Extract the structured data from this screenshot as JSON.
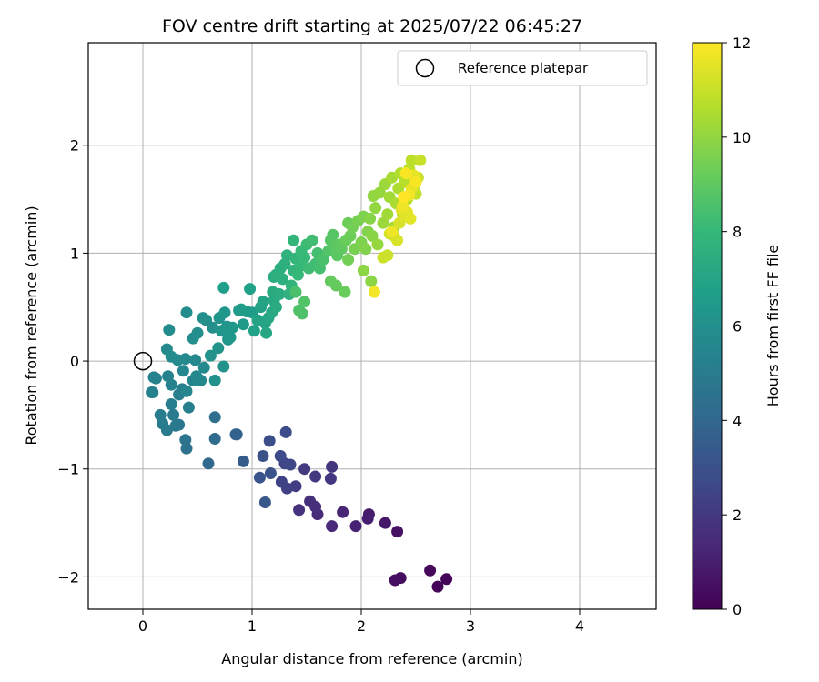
{
  "chart_data": {
    "type": "scatter",
    "title": "FOV centre drift starting at 2025/07/22 06:45:27",
    "xlabel": "Angular distance from reference (arcmin)",
    "ylabel": "Rotation from reference (arcmin)",
    "xlim": [
      -0.5,
      4.7
    ],
    "ylim": [
      -2.3,
      2.95
    ],
    "xticks": [
      0,
      1,
      2,
      3,
      4
    ],
    "yticks": [
      -2,
      -1,
      0,
      1,
      2
    ],
    "xtick_labels": [
      "0",
      "1",
      "2",
      "3",
      "4"
    ],
    "ytick_labels": [
      "−2",
      "−1",
      "0",
      "1",
      "2"
    ],
    "grid": true,
    "legend": {
      "placement": "top-right",
      "entries": [
        {
          "label": "Reference platepar",
          "marker": "hollow-circle",
          "color": "#000000"
        }
      ]
    },
    "reference": {
      "x": 0,
      "y": 0
    },
    "colorbar": {
      "label": "Hours from first FF file",
      "range": [
        0,
        12
      ],
      "ticks": [
        0,
        2,
        4,
        6,
        8,
        10,
        12
      ],
      "tick_labels": [
        "0",
        "2",
        "4",
        "6",
        "8",
        "10",
        "12"
      ],
      "colormap": "viridis",
      "stops": [
        "#440154",
        "#482878",
        "#3e4989",
        "#31688e",
        "#26828e",
        "#1f9e89",
        "#35b779",
        "#6ece58",
        "#b5de2b",
        "#fde725"
      ]
    },
    "points": [
      {
        "x": 2.78,
        "y": -2.02,
        "h": 0.1
      },
      {
        "x": 2.7,
        "y": -2.09,
        "h": 0.15
      },
      {
        "x": 2.63,
        "y": -1.94,
        "h": 0.25
      },
      {
        "x": 2.36,
        "y": -2.01,
        "h": 0.4
      },
      {
        "x": 2.31,
        "y": -2.03,
        "h": 0.45
      },
      {
        "x": 2.33,
        "y": -1.58,
        "h": 0.6
      },
      {
        "x": 2.22,
        "y": -1.5,
        "h": 0.8
      },
      {
        "x": 2.07,
        "y": -1.42,
        "h": 0.9
      },
      {
        "x": 2.06,
        "y": -1.46,
        "h": 1.0
      },
      {
        "x": 1.95,
        "y": -1.53,
        "h": 1.1
      },
      {
        "x": 1.83,
        "y": -1.4,
        "h": 1.3
      },
      {
        "x": 1.73,
        "y": -1.53,
        "h": 1.4
      },
      {
        "x": 1.6,
        "y": -1.42,
        "h": 1.5
      },
      {
        "x": 1.53,
        "y": -1.3,
        "h": 1.6
      },
      {
        "x": 1.58,
        "y": -1.35,
        "h": 1.6
      },
      {
        "x": 1.43,
        "y": -1.38,
        "h": 1.7
      },
      {
        "x": 1.73,
        "y": -0.98,
        "h": 1.8
      },
      {
        "x": 1.72,
        "y": -1.09,
        "h": 1.9
      },
      {
        "x": 1.58,
        "y": -1.07,
        "h": 2.0
      },
      {
        "x": 1.48,
        "y": -1.0,
        "h": 2.1
      },
      {
        "x": 1.4,
        "y": -1.16,
        "h": 2.2
      },
      {
        "x": 1.32,
        "y": -1.18,
        "h": 2.3
      },
      {
        "x": 1.27,
        "y": -1.12,
        "h": 2.4
      },
      {
        "x": 1.3,
        "y": -0.95,
        "h": 2.5
      },
      {
        "x": 1.35,
        "y": -0.96,
        "h": 2.6
      },
      {
        "x": 1.26,
        "y": -0.88,
        "h": 2.7
      },
      {
        "x": 1.31,
        "y": -0.66,
        "h": 2.8
      },
      {
        "x": 1.16,
        "y": -0.74,
        "h": 2.9
      },
      {
        "x": 1.1,
        "y": -0.88,
        "h": 3.0
      },
      {
        "x": 1.17,
        "y": -1.04,
        "h": 3.1
      },
      {
        "x": 1.07,
        "y": -1.08,
        "h": 3.2
      },
      {
        "x": 1.12,
        "y": -1.31,
        "h": 3.3
      },
      {
        "x": 0.92,
        "y": -0.93,
        "h": 3.5
      },
      {
        "x": 0.85,
        "y": -0.68,
        "h": 3.7
      },
      {
        "x": 0.86,
        "y": -0.68,
        "h": 3.8
      },
      {
        "x": 0.6,
        "y": -0.95,
        "h": 4.0
      },
      {
        "x": 0.66,
        "y": -0.72,
        "h": 4.2
      },
      {
        "x": 0.66,
        "y": -0.52,
        "h": 4.4
      },
      {
        "x": 0.4,
        "y": -0.81,
        "h": 4.5
      },
      {
        "x": 0.39,
        "y": -0.73,
        "h": 4.6
      },
      {
        "x": 0.33,
        "y": -0.59,
        "h": 4.7
      },
      {
        "x": 0.3,
        "y": -0.6,
        "h": 4.8
      },
      {
        "x": 0.28,
        "y": -0.5,
        "h": 4.9
      },
      {
        "x": 0.22,
        "y": -0.64,
        "h": 4.9
      },
      {
        "x": 0.18,
        "y": -0.58,
        "h": 5.0
      },
      {
        "x": 0.16,
        "y": -0.5,
        "h": 5.0
      },
      {
        "x": 0.26,
        "y": -0.4,
        "h": 5.1
      },
      {
        "x": 0.33,
        "y": -0.31,
        "h": 5.1
      },
      {
        "x": 0.36,
        "y": -0.26,
        "h": 5.2
      },
      {
        "x": 0.42,
        "y": -0.43,
        "h": 5.2
      },
      {
        "x": 0.26,
        "y": -0.22,
        "h": 5.3
      },
      {
        "x": 0.09,
        "y": -0.29,
        "h": 5.3
      },
      {
        "x": 0.08,
        "y": -0.29,
        "h": 5.3
      },
      {
        "x": 0.1,
        "y": -0.15,
        "h": 5.4
      },
      {
        "x": 0.12,
        "y": -0.16,
        "h": 5.4
      },
      {
        "x": 0.23,
        "y": -0.14,
        "h": 5.4
      },
      {
        "x": 0.37,
        "y": -0.09,
        "h": 5.5
      },
      {
        "x": 0.4,
        "y": -0.28,
        "h": 5.5
      },
      {
        "x": 0.46,
        "y": -0.18,
        "h": 5.5
      },
      {
        "x": 0.49,
        "y": -0.14,
        "h": 5.6
      },
      {
        "x": 0.53,
        "y": -0.18,
        "h": 5.6
      },
      {
        "x": 0.48,
        "y": 0.01,
        "h": 5.6
      },
      {
        "x": 0.56,
        "y": -0.06,
        "h": 5.7
      },
      {
        "x": 0.32,
        "y": 0.01,
        "h": 5.7
      },
      {
        "x": 0.39,
        "y": 0.02,
        "h": 5.7
      },
      {
        "x": 0.22,
        "y": 0.11,
        "h": 5.7
      },
      {
        "x": 0.26,
        "y": 0.04,
        "h": 5.8
      },
      {
        "x": 0.24,
        "y": 0.29,
        "h": 5.8
      },
      {
        "x": 0.4,
        "y": 0.45,
        "h": 5.8
      },
      {
        "x": 0.46,
        "y": 0.21,
        "h": 5.9
      },
      {
        "x": 0.5,
        "y": 0.26,
        "h": 5.9
      },
      {
        "x": 0.55,
        "y": 0.4,
        "h": 6.0
      },
      {
        "x": 0.58,
        "y": 0.38,
        "h": 6.0
      },
      {
        "x": 0.64,
        "y": 0.31,
        "h": 6.0
      },
      {
        "x": 0.66,
        "y": -0.18,
        "h": 6.0
      },
      {
        "x": 0.62,
        "y": 0.05,
        "h": 6.1
      },
      {
        "x": 0.69,
        "y": 0.12,
        "h": 6.1
      },
      {
        "x": 0.74,
        "y": -0.05,
        "h": 6.1
      },
      {
        "x": 0.77,
        "y": 0.32,
        "h": 6.2
      },
      {
        "x": 0.78,
        "y": 0.2,
        "h": 6.2
      },
      {
        "x": 0.7,
        "y": 0.4,
        "h": 6.2
      },
      {
        "x": 0.75,
        "y": 0.45,
        "h": 6.3
      },
      {
        "x": 0.72,
        "y": 0.28,
        "h": 6.3
      },
      {
        "x": 0.8,
        "y": 0.22,
        "h": 6.3
      },
      {
        "x": 0.82,
        "y": 0.31,
        "h": 6.4
      },
      {
        "x": 0.92,
        "y": 0.34,
        "h": 6.4
      },
      {
        "x": 0.9,
        "y": 0.48,
        "h": 6.5
      },
      {
        "x": 0.88,
        "y": 0.47,
        "h": 6.5
      },
      {
        "x": 0.95,
        "y": 0.46,
        "h": 6.6
      },
      {
        "x": 1.0,
        "y": 0.45,
        "h": 6.6
      },
      {
        "x": 0.74,
        "y": 0.68,
        "h": 6.7
      },
      {
        "x": 0.98,
        "y": 0.67,
        "h": 6.8
      },
      {
        "x": 1.02,
        "y": 0.28,
        "h": 6.8
      },
      {
        "x": 1.05,
        "y": 0.38,
        "h": 6.9
      },
      {
        "x": 1.08,
        "y": 0.5,
        "h": 6.9
      },
      {
        "x": 1.1,
        "y": 0.55,
        "h": 7.0
      },
      {
        "x": 1.12,
        "y": 0.35,
        "h": 7.0
      },
      {
        "x": 1.13,
        "y": 0.26,
        "h": 7.1
      },
      {
        "x": 1.15,
        "y": 0.4,
        "h": 7.1
      },
      {
        "x": 1.18,
        "y": 0.45,
        "h": 7.2
      },
      {
        "x": 1.2,
        "y": 0.56,
        "h": 7.2
      },
      {
        "x": 1.19,
        "y": 0.64,
        "h": 7.3
      },
      {
        "x": 1.22,
        "y": 0.5,
        "h": 7.3
      },
      {
        "x": 1.25,
        "y": 0.62,
        "h": 7.4
      },
      {
        "x": 1.2,
        "y": 0.78,
        "h": 7.4
      },
      {
        "x": 1.22,
        "y": 0.8,
        "h": 7.5
      },
      {
        "x": 1.26,
        "y": 0.86,
        "h": 7.5
      },
      {
        "x": 1.28,
        "y": 0.76,
        "h": 7.6
      },
      {
        "x": 1.3,
        "y": 0.9,
        "h": 7.6
      },
      {
        "x": 1.32,
        "y": 0.98,
        "h": 7.7
      },
      {
        "x": 1.34,
        "y": 0.62,
        "h": 7.7
      },
      {
        "x": 1.36,
        "y": 0.7,
        "h": 7.8
      },
      {
        "x": 1.38,
        "y": 0.84,
        "h": 7.8
      },
      {
        "x": 1.4,
        "y": 0.95,
        "h": 7.9
      },
      {
        "x": 1.38,
        "y": 1.12,
        "h": 7.9
      },
      {
        "x": 1.42,
        "y": 0.8,
        "h": 8.0
      },
      {
        "x": 1.44,
        "y": 0.88,
        "h": 8.0
      },
      {
        "x": 1.45,
        "y": 1.02,
        "h": 8.1
      },
      {
        "x": 1.48,
        "y": 0.96,
        "h": 8.1
      },
      {
        "x": 1.5,
        "y": 1.08,
        "h": 8.2
      },
      {
        "x": 1.52,
        "y": 0.86,
        "h": 8.2
      },
      {
        "x": 1.55,
        "y": 1.12,
        "h": 8.3
      },
      {
        "x": 1.58,
        "y": 0.9,
        "h": 8.3
      },
      {
        "x": 1.6,
        "y": 1.0,
        "h": 8.4
      },
      {
        "x": 1.62,
        "y": 0.86,
        "h": 8.4
      },
      {
        "x": 1.65,
        "y": 0.94,
        "h": 8.5
      },
      {
        "x": 1.4,
        "y": 0.64,
        "h": 8.5
      },
      {
        "x": 1.43,
        "y": 0.47,
        "h": 8.6
      },
      {
        "x": 1.46,
        "y": 0.44,
        "h": 8.6
      },
      {
        "x": 1.48,
        "y": 0.55,
        "h": 8.7
      },
      {
        "x": 1.7,
        "y": 1.02,
        "h": 8.7
      },
      {
        "x": 1.72,
        "y": 1.12,
        "h": 8.8
      },
      {
        "x": 1.74,
        "y": 1.17,
        "h": 8.8
      },
      {
        "x": 1.76,
        "y": 1.06,
        "h": 8.9
      },
      {
        "x": 1.78,
        "y": 0.98,
        "h": 8.9
      },
      {
        "x": 1.8,
        "y": 1.08,
        "h": 9.0
      },
      {
        "x": 1.82,
        "y": 1.04,
        "h": 9.0
      },
      {
        "x": 1.72,
        "y": 0.74,
        "h": 9.1
      },
      {
        "x": 1.77,
        "y": 0.7,
        "h": 9.1
      },
      {
        "x": 1.85,
        "y": 0.64,
        "h": 9.2
      },
      {
        "x": 1.86,
        "y": 1.12,
        "h": 9.2
      },
      {
        "x": 1.88,
        "y": 1.28,
        "h": 9.3
      },
      {
        "x": 1.9,
        "y": 1.16,
        "h": 9.3
      },
      {
        "x": 1.92,
        "y": 1.24,
        "h": 9.4
      },
      {
        "x": 1.88,
        "y": 0.94,
        "h": 9.4
      },
      {
        "x": 1.94,
        "y": 1.04,
        "h": 9.5
      },
      {
        "x": 1.97,
        "y": 1.3,
        "h": 9.5
      },
      {
        "x": 2.0,
        "y": 1.1,
        "h": 9.6
      },
      {
        "x": 2.02,
        "y": 1.34,
        "h": 9.6
      },
      {
        "x": 2.04,
        "y": 1.04,
        "h": 9.7
      },
      {
        "x": 2.06,
        "y": 1.2,
        "h": 9.7
      },
      {
        "x": 2.08,
        "y": 1.32,
        "h": 9.8
      },
      {
        "x": 2.1,
        "y": 1.16,
        "h": 9.8
      },
      {
        "x": 2.02,
        "y": 0.84,
        "h": 9.9
      },
      {
        "x": 2.09,
        "y": 0.74,
        "h": 9.9
      },
      {
        "x": 2.11,
        "y": 1.53,
        "h": 10.0
      },
      {
        "x": 2.13,
        "y": 1.42,
        "h": 10.0
      },
      {
        "x": 2.15,
        "y": 1.08,
        "h": 10.1
      },
      {
        "x": 2.17,
        "y": 1.56,
        "h": 10.1
      },
      {
        "x": 2.2,
        "y": 1.28,
        "h": 10.2
      },
      {
        "x": 2.22,
        "y": 1.64,
        "h": 10.2
      },
      {
        "x": 2.24,
        "y": 1.36,
        "h": 10.3
      },
      {
        "x": 2.26,
        "y": 1.52,
        "h": 10.3
      },
      {
        "x": 2.28,
        "y": 1.7,
        "h": 10.4
      },
      {
        "x": 2.3,
        "y": 1.24,
        "h": 10.4
      },
      {
        "x": 2.32,
        "y": 1.46,
        "h": 10.5
      },
      {
        "x": 2.34,
        "y": 1.6,
        "h": 10.5
      },
      {
        "x": 2.36,
        "y": 1.74,
        "h": 10.6
      },
      {
        "x": 2.38,
        "y": 1.36,
        "h": 10.6
      },
      {
        "x": 2.4,
        "y": 1.66,
        "h": 10.7
      },
      {
        "x": 2.42,
        "y": 1.5,
        "h": 10.7
      },
      {
        "x": 2.44,
        "y": 1.78,
        "h": 10.8
      },
      {
        "x": 2.46,
        "y": 1.86,
        "h": 10.8
      },
      {
        "x": 2.48,
        "y": 1.62,
        "h": 10.9
      },
      {
        "x": 2.5,
        "y": 1.55,
        "h": 10.9
      },
      {
        "x": 2.52,
        "y": 1.7,
        "h": 11.0
      },
      {
        "x": 2.54,
        "y": 1.86,
        "h": 11.0
      },
      {
        "x": 2.2,
        "y": 0.96,
        "h": 11.1
      },
      {
        "x": 2.24,
        "y": 0.98,
        "h": 11.1
      },
      {
        "x": 2.26,
        "y": 1.18,
        "h": 11.2
      },
      {
        "x": 2.3,
        "y": 1.16,
        "h": 11.2
      },
      {
        "x": 2.33,
        "y": 1.12,
        "h": 11.3
      },
      {
        "x": 2.35,
        "y": 1.28,
        "h": 11.3
      },
      {
        "x": 2.37,
        "y": 1.4,
        "h": 11.4
      },
      {
        "x": 2.4,
        "y": 1.34,
        "h": 11.4
      },
      {
        "x": 2.42,
        "y": 1.38,
        "h": 11.5
      },
      {
        "x": 2.45,
        "y": 1.32,
        "h": 11.5
      },
      {
        "x": 2.46,
        "y": 1.6,
        "h": 11.6
      },
      {
        "x": 2.48,
        "y": 1.72,
        "h": 11.6
      },
      {
        "x": 2.38,
        "y": 1.44,
        "h": 11.7
      },
      {
        "x": 2.28,
        "y": 1.2,
        "h": 11.7
      },
      {
        "x": 2.12,
        "y": 0.64,
        "h": 11.8
      },
      {
        "x": 2.44,
        "y": 1.54,
        "h": 11.8
      },
      {
        "x": 2.41,
        "y": 1.74,
        "h": 11.9
      },
      {
        "x": 2.5,
        "y": 1.66,
        "h": 11.9
      },
      {
        "x": 2.39,
        "y": 1.52,
        "h": 12.0
      }
    ]
  }
}
